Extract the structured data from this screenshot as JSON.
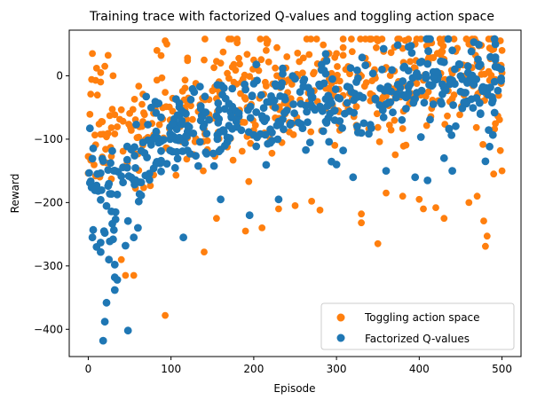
{
  "chart_data": {
    "type": "scatter",
    "title": "Training trace with factorized Q-values and toggling action space",
    "xlabel": "Episode",
    "ylabel": "Reward",
    "xlim": [
      -23,
      523
    ],
    "ylim": [
      -443,
      72
    ],
    "xticks": [
      0,
      100,
      200,
      300,
      400,
      500
    ],
    "yticks": [
      -400,
      -300,
      -200,
      -100,
      0
    ],
    "grid": false,
    "legend_position": "lower-right",
    "series": [
      {
        "name": "Toggling action space",
        "color": "#ff7f0e",
        "marker_r": 3.9,
        "seed": 7,
        "n_random": 500,
        "trend": [
          [
            0,
            -90
          ],
          [
            50,
            -100
          ],
          [
            100,
            -60
          ],
          [
            200,
            -30
          ],
          [
            300,
            -20
          ],
          [
            400,
            0
          ],
          [
            500,
            5
          ]
        ],
        "noise": 45,
        "points": [
          [
            93,
            -378
          ],
          [
            140,
            -278
          ],
          [
            350,
            -265
          ],
          [
            478,
            -229
          ],
          [
            482,
            -253
          ],
          [
            480,
            -269
          ],
          [
            40,
            -290
          ],
          [
            45,
            -315
          ],
          [
            55,
            -315
          ],
          [
            190,
            -245
          ],
          [
            155,
            -225
          ],
          [
            210,
            -240
          ],
          [
            330,
            -218
          ],
          [
            330,
            -232
          ],
          [
            280,
            -212
          ],
          [
            360,
            -185
          ],
          [
            380,
            -190
          ],
          [
            400,
            -195
          ],
          [
            405,
            -210
          ],
          [
            420,
            -208
          ],
          [
            430,
            -225
          ],
          [
            460,
            -200
          ],
          [
            490,
            -155
          ],
          [
            500,
            -150
          ],
          [
            498,
            -118
          ],
          [
            470,
            -190
          ],
          [
            270,
            -198
          ],
          [
            250,
            -205
          ],
          [
            230,
            -210
          ],
          [
            5,
            35
          ],
          [
            10,
            12
          ],
          [
            15,
            5
          ],
          [
            20,
            15
          ],
          [
            30,
            0
          ],
          [
            95,
            50
          ],
          [
            180,
            52
          ],
          [
            215,
            40
          ],
          [
            335,
            58
          ],
          [
            350,
            55
          ],
          [
            370,
            45
          ],
          [
            395,
            50
          ],
          [
            460,
            50
          ],
          [
            475,
            48
          ],
          [
            490,
            42
          ],
          [
            500,
            40
          ],
          [
            240,
            30
          ],
          [
            260,
            28
          ],
          [
            300,
            35
          ],
          [
            120,
            28
          ],
          [
            140,
            25
          ],
          [
            160,
            20
          ],
          [
            200,
            25
          ]
        ]
      },
      {
        "name": "Factorized Q-values",
        "color": "#1f77b4",
        "marker_r": 4.4,
        "seed": 13,
        "n_random": 480,
        "trend": [
          [
            0,
            -170
          ],
          [
            20,
            -195
          ],
          [
            50,
            -175
          ],
          [
            80,
            -90
          ],
          [
            120,
            -80
          ],
          [
            200,
            -60
          ],
          [
            300,
            -40
          ],
          [
            400,
            -10
          ],
          [
            500,
            -10
          ]
        ],
        "noise": 35,
        "points": [
          [
            18,
            -418
          ],
          [
            48,
            -402
          ],
          [
            20,
            -388
          ],
          [
            22,
            -358
          ],
          [
            32,
            -338
          ],
          [
            32,
            -318
          ],
          [
            35,
            -322
          ],
          [
            32,
            -298
          ],
          [
            25,
            -290
          ],
          [
            15,
            -278
          ],
          [
            5,
            -255
          ],
          [
            10,
            -270
          ],
          [
            20,
            -248
          ],
          [
            30,
            -258
          ],
          [
            45,
            -268
          ],
          [
            55,
            -255
          ],
          [
            60,
            -240
          ],
          [
            115,
            -255
          ],
          [
            160,
            -195
          ],
          [
            195,
            -220
          ],
          [
            230,
            -195
          ],
          [
            320,
            -160
          ],
          [
            410,
            -165
          ],
          [
            480,
            -135
          ],
          [
            430,
            -130
          ],
          [
            360,
            -150
          ],
          [
            300,
            -140
          ],
          [
            440,
            -150
          ],
          [
            395,
            -160
          ]
        ]
      }
    ]
  }
}
